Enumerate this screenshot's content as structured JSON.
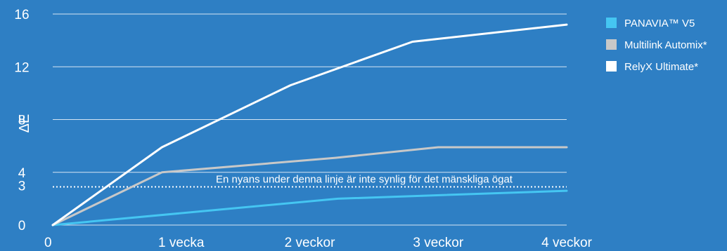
{
  "chart_data": {
    "type": "line",
    "categories": [
      "0",
      "1 vecka",
      "2 veckor",
      "3 veckor",
      "4 veckor"
    ],
    "x": [
      0,
      1,
      2,
      3,
      4
    ],
    "yticks": [
      0,
      3,
      4,
      8,
      12,
      16
    ],
    "ylim": [
      0,
      16
    ],
    "xlabel": "",
    "ylabel": "ΔE",
    "grid": true,
    "legend_position": "top-right",
    "series": [
      {
        "name": "PANAVIA™ V5",
        "color": "#45c6f2",
        "x": [
          0,
          2.22,
          4
        ],
        "values": [
          0,
          2.0,
          2.6
        ]
      },
      {
        "name": "Multilink Automix*",
        "color": "#c8c8c8",
        "x": [
          0,
          0.85,
          2.2,
          3,
          4
        ],
        "values": [
          0,
          4.0,
          5.1,
          5.9,
          5.9
        ]
      },
      {
        "name": "RelyX Ultimate*",
        "color": "#ffffff",
        "x": [
          0,
          0.85,
          1.85,
          2.8,
          4
        ],
        "values": [
          0,
          5.9,
          10.6,
          13.9,
          15.2
        ]
      }
    ],
    "threshold": {
      "value": 2.9,
      "label": "En nyans under denna linje är inte synlig för det mänskliga ögat"
    }
  }
}
